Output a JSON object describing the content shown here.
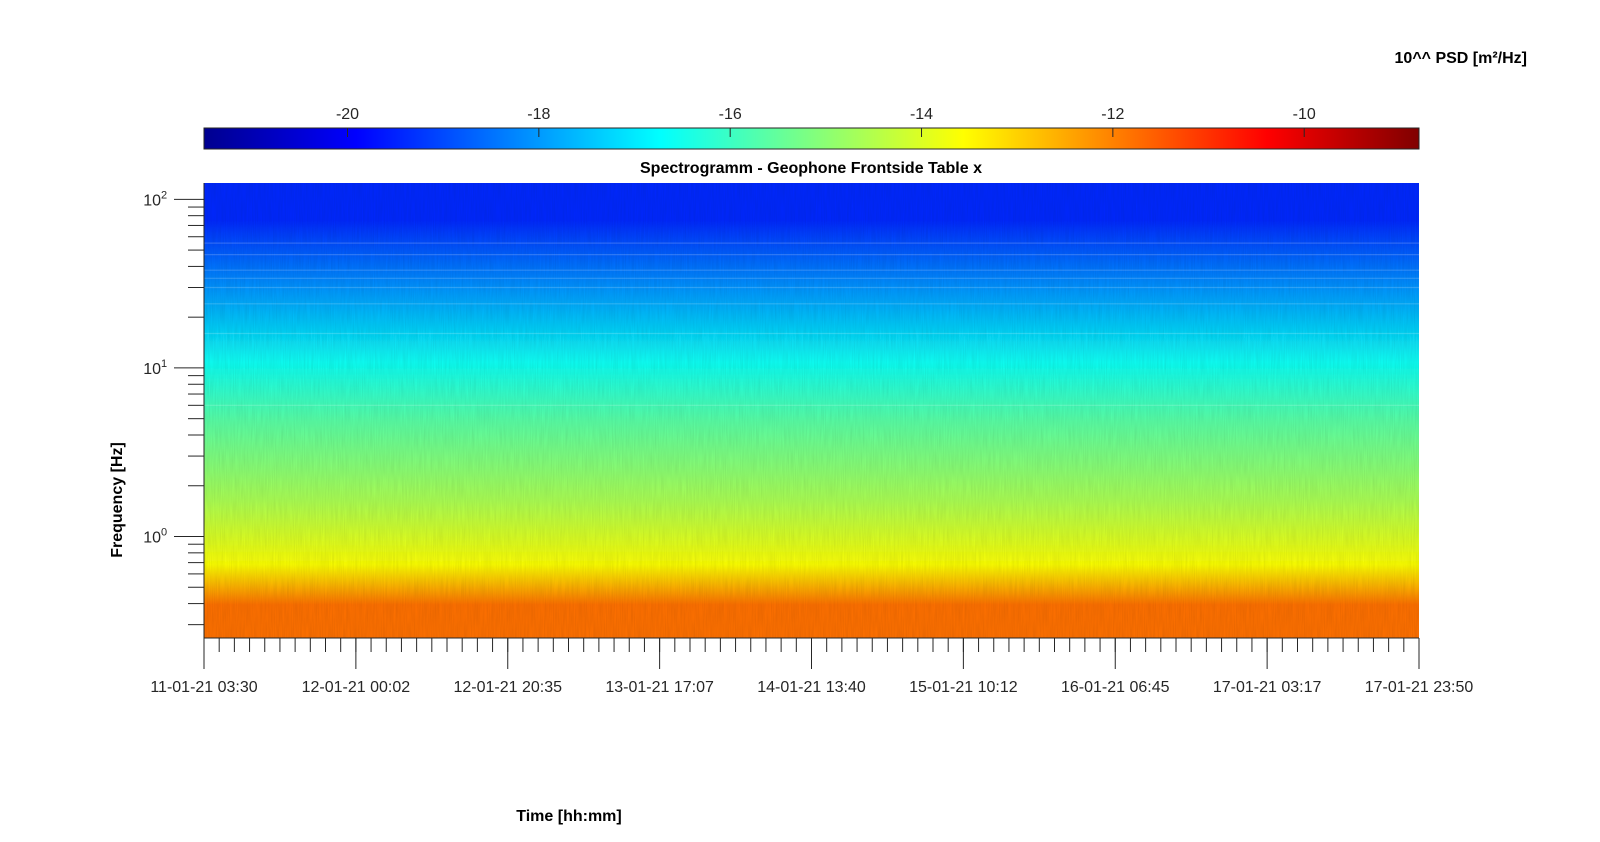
{
  "chart_data": {
    "type": "heatmap",
    "title": "Spectrogramm - Geophone Frontside Table x",
    "xlabel": "Time [hh:mm]",
    "ylabel": "Frequency [Hz]",
    "x_scale": "time",
    "x_range": [
      "11-01-21 03:30",
      "17-01-21 23:50"
    ],
    "x_tick_labels": [
      "11-01-21 03:30",
      "12-01-21 00:02",
      "12-01-21 20:35",
      "13-01-21 17:07",
      "14-01-21 13:40",
      "15-01-21 10:12",
      "16-01-21 06:45",
      "17-01-21 03:17",
      "17-01-21 23:50"
    ],
    "y_scale": "log",
    "ylim": [
      0.25,
      125
    ],
    "y_tick_values": [
      1,
      10,
      100
    ],
    "y_tick_labels": [
      "10",
      "10",
      "10"
    ],
    "y_tick_exponents": [
      "0",
      "1",
      "2"
    ],
    "colorbar": {
      "label": "10^^ PSD [m²/Hz]",
      "colormap": "jet",
      "placement": "top",
      "range": [
        -21.5,
        -8.8
      ],
      "tick_values": [
        -20,
        -18,
        -16,
        -14,
        -12,
        -10
      ],
      "tick_labels": [
        "-20",
        "-18",
        "-16",
        "-14",
        "-12",
        "-10"
      ]
    },
    "frequency_bands": [
      {
        "f_min": 0.25,
        "f_max": 0.62,
        "log10_psd": -11.8
      },
      {
        "f_min": 0.62,
        "f_max": 0.75,
        "log10_psd": -13.6
      },
      {
        "f_min": 0.75,
        "f_max": 3.5,
        "log10_psd": -14.6
      },
      {
        "f_min": 3.5,
        "f_max": 6.5,
        "log10_psd": -15.6
      },
      {
        "f_min": 6.5,
        "f_max": 18,
        "log10_psd": -16.6
      },
      {
        "f_min": 18,
        "f_max": 45,
        "log10_psd": -18.0
      },
      {
        "f_min": 45,
        "f_max": 125,
        "log10_psd": -19.4
      }
    ],
    "grid": false
  }
}
